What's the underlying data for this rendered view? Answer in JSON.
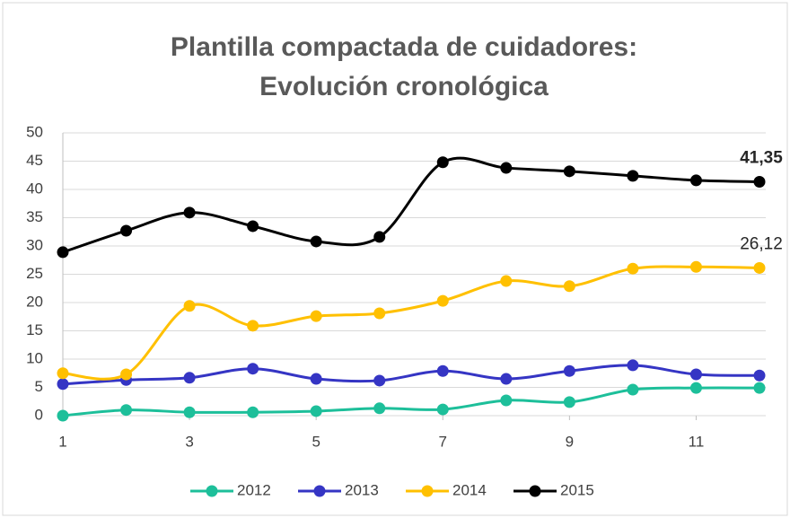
{
  "chart_data": {
    "type": "line",
    "title": [
      "Plantilla compactada de cuidadores:",
      "Evolución cronológica"
    ],
    "x": [
      1,
      2,
      3,
      4,
      5,
      6,
      7,
      8,
      9,
      10,
      11,
      12
    ],
    "xlim": [
      1,
      12
    ],
    "xticks": [
      1,
      3,
      5,
      7,
      9,
      11
    ],
    "ylim": [
      0,
      50
    ],
    "yticks": [
      0,
      5,
      10,
      15,
      20,
      25,
      30,
      35,
      40,
      45,
      50
    ],
    "grid": true,
    "smooth": true,
    "legend": "bottom",
    "series": [
      {
        "name": "2012",
        "color": "#1dbf9a",
        "values": [
          0,
          1.0,
          0.6,
          0.6,
          0.8,
          1.3,
          1.1,
          2.7,
          2.4,
          4.6,
          4.9,
          4.9
        ]
      },
      {
        "name": "2013",
        "color": "#3535c4",
        "values": [
          5.6,
          6.3,
          6.7,
          8.3,
          6.5,
          6.2,
          7.9,
          6.5,
          7.9,
          8.9,
          7.3,
          7.1
        ]
      },
      {
        "name": "2014",
        "color": "#ffc000",
        "values": [
          7.5,
          7.3,
          19.4,
          15.9,
          17.6,
          18.1,
          20.3,
          23.8,
          22.9,
          26.0,
          26.3,
          26.12
        ],
        "value_labels": [
          null,
          null,
          null,
          null,
          null,
          null,
          null,
          null,
          null,
          null,
          null,
          "26,12"
        ]
      },
      {
        "name": "2015",
        "color": "#000000",
        "values": [
          28.9,
          32.7,
          35.9,
          33.5,
          30.8,
          31.6,
          44.8,
          43.8,
          43.2,
          42.4,
          41.6,
          41.35
        ],
        "value_labels": [
          null,
          null,
          null,
          null,
          null,
          null,
          null,
          null,
          null,
          null,
          null,
          "41,35"
        ],
        "label_bold": true
      }
    ]
  }
}
